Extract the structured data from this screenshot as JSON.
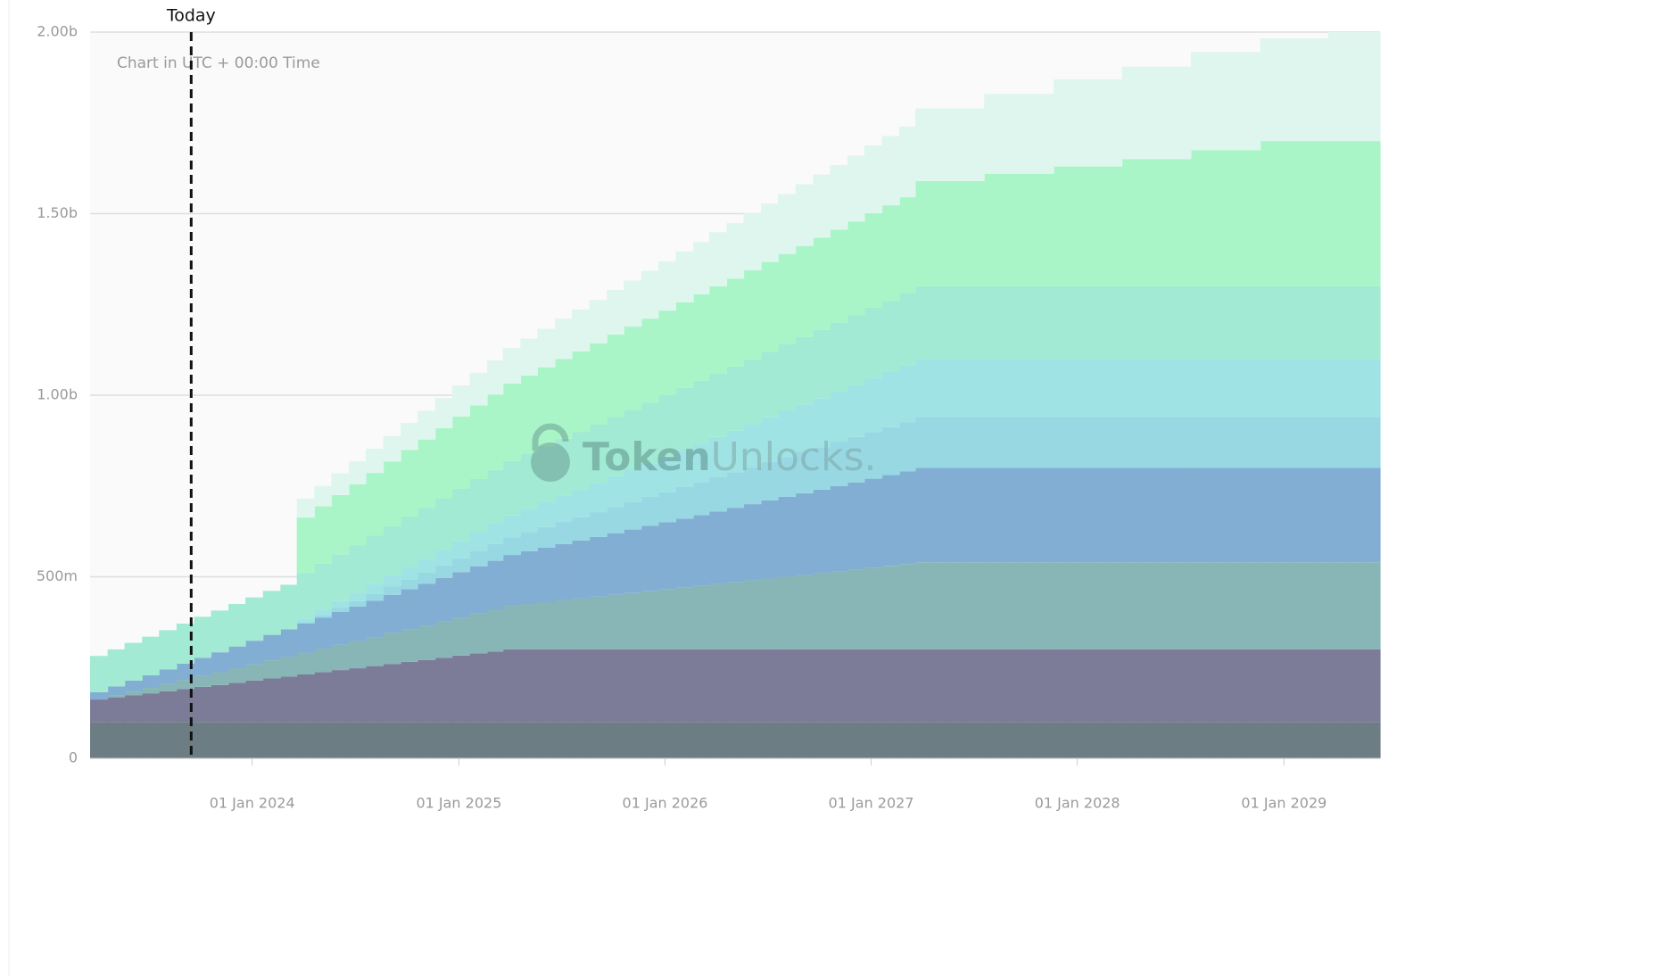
{
  "chart_data": {
    "type": "stacked-step-area",
    "note": "Chart in UTC + 00:00 Time",
    "watermark": {
      "brand": "Token",
      "brand_suffix": "Unlocks."
    },
    "annotation": {
      "text": "Today",
      "x": "2023-09-15"
    },
    "xlim": [
      "2023-03-20",
      "2029-06-20"
    ],
    "xticks": [
      {
        "value": "2024-01-01",
        "label": "01 Jan 2024"
      },
      {
        "value": "2025-01-01",
        "label": "01 Jan 2025"
      },
      {
        "value": "2026-01-01",
        "label": "01 Jan 2026"
      },
      {
        "value": "2027-01-01",
        "label": "01 Jan 2027"
      },
      {
        "value": "2028-01-01",
        "label": "01 Jan 2028"
      },
      {
        "value": "2029-01-01",
        "label": "01 Jan 2029"
      }
    ],
    "ylim": [
      0,
      2000
    ],
    "yticks": [
      0,
      {
        "value": 500,
        "label": "500m"
      },
      {
        "value": 1000,
        "label": "1.00b"
      },
      {
        "value": 1500,
        "label": "1.50b"
      },
      {
        "value": 2000,
        "label": "2.00b"
      }
    ],
    "grid": true,
    "x": [
      "2023-03-20",
      "2023-04-20",
      "2023-05-20",
      "2023-06-20",
      "2023-07-20",
      "2023-08-20",
      "2023-09-20",
      "2023-10-20",
      "2023-11-20",
      "2023-12-20",
      "2024-01-20",
      "2024-02-20",
      "2024-03-20",
      "2024-04-20",
      "2024-05-20",
      "2024-06-20",
      "2024-07-20",
      "2024-08-20",
      "2024-09-20",
      "2024-10-20",
      "2024-11-20",
      "2024-12-20",
      "2025-01-20",
      "2025-02-20",
      "2025-03-20",
      "2025-04-20",
      "2025-05-20",
      "2025-06-20",
      "2025-07-20",
      "2025-08-20",
      "2025-09-20",
      "2025-10-20",
      "2025-11-20",
      "2025-12-20",
      "2026-01-20",
      "2026-02-20",
      "2026-03-20",
      "2026-04-20",
      "2026-05-20",
      "2026-06-20",
      "2026-07-20",
      "2026-08-20",
      "2026-09-20",
      "2026-10-20",
      "2026-11-20",
      "2026-12-20",
      "2027-01-20",
      "2027-02-20",
      "2027-03-20",
      "2027-04-20",
      "2027-05-20",
      "2027-06-20",
      "2027-07-20",
      "2027-08-20",
      "2027-09-20",
      "2027-10-20",
      "2027-11-20",
      "2027-12-20",
      "2028-01-20",
      "2028-02-20",
      "2028-03-20",
      "2028-04-20",
      "2028-05-20",
      "2028-06-20",
      "2028-07-20",
      "2028-08-20",
      "2028-09-20",
      "2028-10-20",
      "2028-11-20",
      "2028-12-20",
      "2029-01-20",
      "2029-02-20",
      "2029-03-20",
      "2029-04-20",
      "2029-05-20"
    ],
    "series": [
      {
        "color": "#6c7d83",
        "values": [
          100,
          100,
          100,
          100,
          100,
          100,
          100,
          100,
          100,
          100,
          100,
          100,
          100,
          100,
          100,
          100,
          100,
          100,
          100,
          100,
          100,
          100,
          100,
          100,
          100,
          100,
          100,
          100,
          100,
          100,
          100,
          100,
          100,
          100,
          100,
          100,
          100,
          100,
          100,
          100,
          100,
          100,
          100,
          100,
          100,
          100,
          100,
          100,
          100,
          100,
          100,
          100,
          100,
          100,
          100,
          100,
          100,
          100,
          100,
          100,
          100,
          100,
          100,
          100,
          100,
          100,
          100,
          100,
          100,
          100,
          100,
          100,
          100,
          100,
          100
        ]
      },
      {
        "color": "#7c7c99",
        "values": [
          62,
          68,
          74,
          79,
          85,
          91,
          97,
          102,
          108,
          114,
          120,
          125,
          131,
          137,
          143,
          148,
          154,
          160,
          166,
          171,
          177,
          183,
          189,
          194,
          200,
          200,
          200,
          200,
          200,
          200,
          200,
          200,
          200,
          200,
          200,
          200,
          200,
          200,
          200,
          200,
          200,
          200,
          200,
          200,
          200,
          200,
          200,
          200,
          200,
          200,
          200,
          200,
          200,
          200,
          200,
          200,
          200,
          200,
          200,
          200,
          200,
          200,
          200,
          200,
          200,
          200,
          200,
          200,
          200,
          200,
          200,
          200,
          200,
          200,
          200
        ]
      },
      {
        "color": "#88b5b5",
        "values": [
          0,
          5,
          10,
          15,
          20,
          25,
          30,
          35,
          40,
          45,
          50,
          55,
          60,
          65,
          70,
          75,
          80,
          85,
          90,
          95,
          100,
          105,
          110,
          115,
          120,
          125,
          130,
          135,
          140,
          145,
          150,
          155,
          160,
          165,
          170,
          175,
          180,
          185,
          190,
          195,
          200,
          205,
          210,
          215,
          220,
          225,
          230,
          235,
          240,
          240,
          240,
          240,
          240,
          240,
          240,
          240,
          240,
          240,
          240,
          240,
          240,
          240,
          240,
          240,
          240,
          240,
          240,
          240,
          240,
          240,
          240,
          240,
          240,
          240,
          240
        ]
      },
      {
        "color": "#83aed3",
        "values": [
          20,
          25,
          30,
          35,
          40,
          45,
          50,
          55,
          60,
          65,
          70,
          75,
          80,
          85,
          90,
          95,
          100,
          105,
          110,
          115,
          120,
          125,
          130,
          135,
          140,
          145,
          150,
          155,
          160,
          165,
          170,
          175,
          180,
          185,
          190,
          195,
          200,
          205,
          210,
          215,
          220,
          225,
          230,
          235,
          240,
          245,
          250,
          255,
          260,
          260,
          260,
          260,
          260,
          260,
          260,
          260,
          260,
          260,
          260,
          260,
          260,
          260,
          260,
          260,
          260,
          260,
          260,
          260,
          260,
          260,
          260,
          260,
          260,
          260,
          260
        ]
      },
      {
        "color": "#97d8e3",
        "values": [
          0,
          0,
          0,
          0,
          0,
          0,
          0,
          0,
          0,
          0,
          0,
          0,
          4,
          8,
          12,
          15,
          19,
          23,
          27,
          30,
          34,
          38,
          42,
          46,
          49,
          53,
          57,
          61,
          64,
          68,
          72,
          76,
          80,
          83,
          87,
          91,
          95,
          98,
          102,
          106,
          110,
          114,
          117,
          121,
          125,
          129,
          132,
          136,
          140,
          140,
          140,
          140,
          140,
          140,
          140,
          140,
          140,
          140,
          140,
          140,
          140,
          140,
          140,
          140,
          140,
          140,
          140,
          140,
          140,
          140,
          140,
          140,
          140,
          140,
          140
        ]
      },
      {
        "color": "#9fe3e5",
        "values": [
          0,
          0,
          0,
          0,
          0,
          0,
          0,
          0,
          0,
          0,
          0,
          0,
          10,
          14,
          18,
          23,
          27,
          31,
          35,
          39,
          43,
          48,
          52,
          56,
          60,
          64,
          68,
          73,
          77,
          81,
          85,
          89,
          93,
          98,
          102,
          106,
          110,
          114,
          118,
          123,
          127,
          131,
          135,
          139,
          143,
          148,
          152,
          156,
          160,
          160,
          160,
          160,
          160,
          160,
          160,
          160,
          160,
          160,
          160,
          160,
          160,
          160,
          160,
          160,
          160,
          160,
          160,
          160,
          160,
          160,
          160,
          160,
          160,
          160,
          160
        ]
      },
      {
        "color": "#a2ead3",
        "values": [
          100,
          102,
          104,
          106,
          108,
          110,
          113,
          115,
          117,
          119,
          121,
          123,
          125,
          127,
          129,
          131,
          133,
          135,
          138,
          140,
          142,
          144,
          146,
          148,
          150,
          152,
          154,
          156,
          158,
          160,
          163,
          165,
          167,
          169,
          171,
          173,
          175,
          177,
          179,
          181,
          183,
          185,
          188,
          190,
          192,
          194,
          196,
          198,
          200,
          200,
          200,
          200,
          200,
          200,
          200,
          200,
          200,
          200,
          200,
          200,
          200,
          200,
          200,
          200,
          200,
          200,
          200,
          200,
          200,
          200,
          200,
          200,
          200,
          200,
          200
        ]
      },
      {
        "color": "#a9f5c8",
        "values": [
          0,
          0,
          0,
          0,
          0,
          0,
          0,
          0,
          0,
          0,
          0,
          0,
          153,
          158,
          163,
          168,
          173,
          178,
          183,
          188,
          193,
          198,
          203,
          208,
          213,
          215,
          218,
          220,
          222,
          224,
          227,
          229,
          231,
          233,
          236,
          238,
          240,
          242,
          245,
          247,
          249,
          251,
          254,
          256,
          258,
          260,
          263,
          265,
          290,
          290,
          290,
          290,
          310,
          310,
          310,
          310,
          330,
          330,
          330,
          330,
          350,
          350,
          350,
          350,
          375,
          375,
          375,
          375,
          400,
          400,
          400,
          400,
          400,
          400,
          400
        ]
      },
      {
        "color": "#dff6ee",
        "values": [
          0,
          0,
          0,
          0,
          0,
          0,
          0,
          0,
          0,
          0,
          0,
          0,
          52,
          56,
          60,
          63,
          67,
          71,
          75,
          79,
          83,
          86,
          90,
          94,
          98,
          102,
          106,
          111,
          115,
          119,
          123,
          127,
          132,
          136,
          140,
          144,
          149,
          153,
          157,
          161,
          165,
          170,
          174,
          178,
          182,
          187,
          191,
          195,
          200,
          200,
          200,
          200,
          220,
          220,
          220,
          220,
          240,
          240,
          240,
          240,
          255,
          255,
          255,
          255,
          270,
          270,
          270,
          270,
          283,
          283,
          283,
          283,
          300,
          300,
          300
        ]
      }
    ]
  }
}
